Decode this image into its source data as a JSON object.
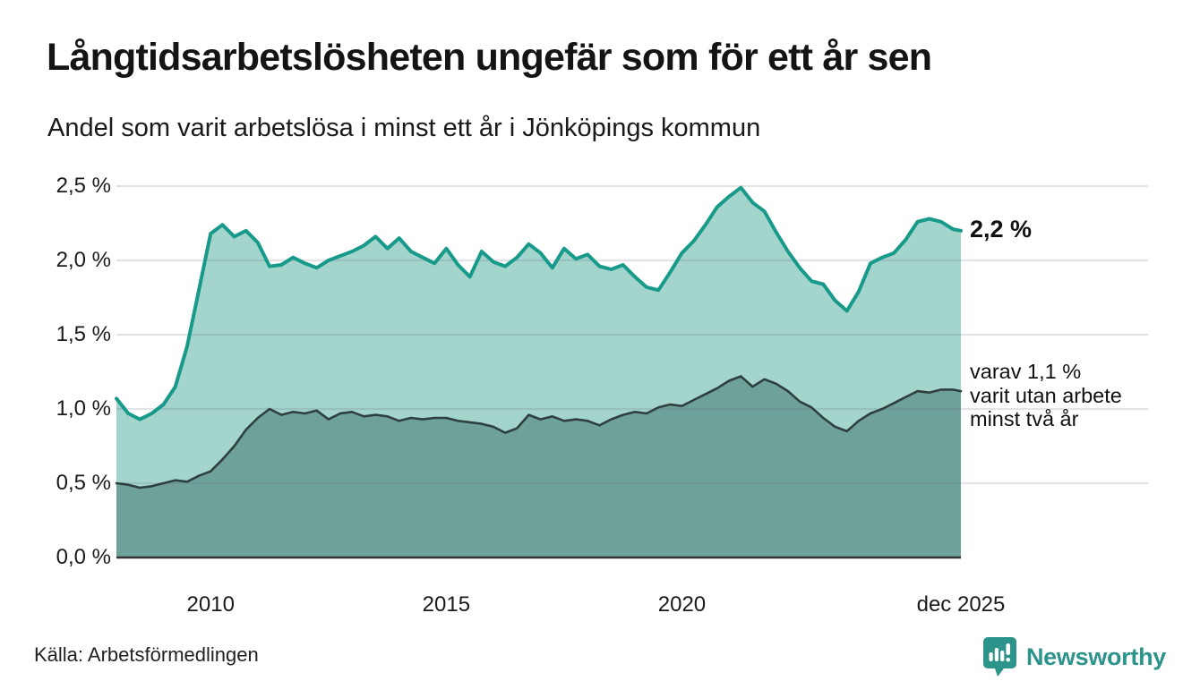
{
  "header": {
    "title": "Långtidsarbetslösheten ungefär som för ett år sen",
    "subtitle": "Andel som varit arbetslösa i minst ett år i Jönköpings kommun"
  },
  "annotations": {
    "latest_total_label": "2,2 %",
    "subset_label_line1": "varav 1,1 %",
    "subset_label_line2": "varit utan arbete",
    "subset_label_line3": "minst två år"
  },
  "footer": {
    "source": "Källa: Arbetsförmedlingen",
    "brand_name": "Newsworthy",
    "brand_icon": "newsworthy-pin-barchart-icon"
  },
  "colors": {
    "background": "#ffffff",
    "title_text": "#141414",
    "axis_text": "#1a1a1a",
    "gridline_overlay": "rgba(105,115,130,0.20)",
    "axis_baseline": "#333333",
    "series1_line": "#189a8a",
    "series1_fill": "#a3d5cd",
    "series2_line": "#2e403d",
    "series2_fill": "#6fa19b",
    "brand_teal": "#2d948b"
  },
  "chart_data": {
    "type": "area",
    "title": "Långtidsarbetslösheten ungefär som för ett år sen",
    "subtitle": "Andel som varit arbetslösa i minst ett år i Jönköpings kommun",
    "unit": "percent of population, share unemployed at least one year, Jönköpings kommun",
    "grid": "horizontal only",
    "legend_position": "annotations at right edge of plot",
    "xlim_decimal_years": [
      2008.0,
      2025.92
    ],
    "ylim": [
      0,
      2.5
    ],
    "y_ticks": [
      {
        "v": 2.5,
        "label": "2,5 %"
      },
      {
        "v": 2.0,
        "label": "2,0 %"
      },
      {
        "v": 1.5,
        "label": "1,5 %"
      },
      {
        "v": 1.0,
        "label": "1,0 %"
      },
      {
        "v": 0.5,
        "label": "0,5 %"
      },
      {
        "v": 0.0,
        "label": "0,0 %"
      }
    ],
    "x_ticks": [
      {
        "v": 2010,
        "label": "2010"
      },
      {
        "v": 2015,
        "label": "2015"
      },
      {
        "v": 2020,
        "label": "2020"
      },
      {
        "v": 2025.92,
        "label": "dec 2025"
      }
    ],
    "x": [
      2008.0,
      2008.25,
      2008.5,
      2008.75,
      2009.0,
      2009.25,
      2009.5,
      2009.75,
      2010.0,
      2010.25,
      2010.5,
      2010.75,
      2011.0,
      2011.25,
      2011.5,
      2011.75,
      2012.0,
      2012.25,
      2012.5,
      2012.75,
      2013.0,
      2013.25,
      2013.5,
      2013.75,
      2014.0,
      2014.25,
      2014.5,
      2014.75,
      2015.0,
      2015.25,
      2015.5,
      2015.75,
      2016.0,
      2016.25,
      2016.5,
      2016.75,
      2017.0,
      2017.25,
      2017.5,
      2017.75,
      2018.0,
      2018.25,
      2018.5,
      2018.75,
      2019.0,
      2019.25,
      2019.5,
      2019.75,
      2020.0,
      2020.25,
      2020.5,
      2020.75,
      2021.0,
      2021.25,
      2021.5,
      2021.75,
      2022.0,
      2022.25,
      2022.5,
      2022.75,
      2023.0,
      2023.25,
      2023.5,
      2023.75,
      2024.0,
      2024.25,
      2024.5,
      2024.75,
      2025.0,
      2025.25,
      2025.5,
      2025.75,
      2025.92
    ],
    "series": [
      {
        "name": "Andel arbetslösa minst ett år",
        "latest_value_pct": 2.2,
        "values": [
          1.07,
          0.97,
          0.93,
          0.97,
          1.03,
          1.15,
          1.42,
          1.8,
          2.18,
          2.24,
          2.16,
          2.2,
          2.12,
          1.96,
          1.97,
          2.02,
          1.98,
          1.95,
          2.0,
          2.03,
          2.06,
          2.1,
          2.16,
          2.08,
          2.15,
          2.06,
          2.02,
          1.98,
          2.08,
          1.97,
          1.89,
          2.06,
          1.99,
          1.96,
          2.02,
          2.11,
          2.05,
          1.95,
          2.08,
          2.01,
          2.04,
          1.96,
          1.94,
          1.97,
          1.89,
          1.82,
          1.8,
          1.92,
          2.05,
          2.13,
          2.24,
          2.36,
          2.43,
          2.49,
          2.39,
          2.33,
          2.19,
          2.06,
          1.95,
          1.86,
          1.84,
          1.73,
          1.66,
          1.79,
          1.98,
          2.02,
          2.05,
          2.14,
          2.26,
          2.28,
          2.26,
          2.21,
          2.2
        ]
      },
      {
        "name": "Varav utan arbete minst två år",
        "latest_value_pct": 1.1,
        "values": [
          0.5,
          0.49,
          0.47,
          0.48,
          0.5,
          0.52,
          0.51,
          0.55,
          0.58,
          0.66,
          0.75,
          0.86,
          0.94,
          1.0,
          0.96,
          0.98,
          0.97,
          0.99,
          0.93,
          0.97,
          0.98,
          0.95,
          0.96,
          0.95,
          0.92,
          0.94,
          0.93,
          0.94,
          0.94,
          0.92,
          0.91,
          0.9,
          0.88,
          0.84,
          0.87,
          0.96,
          0.93,
          0.95,
          0.92,
          0.93,
          0.92,
          0.89,
          0.93,
          0.96,
          0.98,
          0.97,
          1.01,
          1.03,
          1.02,
          1.06,
          1.1,
          1.14,
          1.19,
          1.22,
          1.15,
          1.2,
          1.17,
          1.12,
          1.05,
          1.01,
          0.94,
          0.88,
          0.85,
          0.92,
          0.97,
          1.0,
          1.04,
          1.08,
          1.12,
          1.11,
          1.13,
          1.13,
          1.12
        ]
      }
    ]
  }
}
